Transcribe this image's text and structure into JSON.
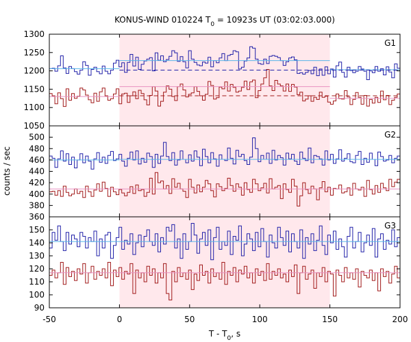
{
  "chart_data": {
    "type": "line",
    "title": "KONUS-WIND 010224 T",
    "title_sub": "0",
    "title_rest": " = 10923s UT (03:02:03.000)",
    "xlabel": "T - T",
    "xlabel_sub": "0",
    "xlabel_rest": ", s",
    "ylabel": "counts / sec",
    "xlim": [
      -50,
      200
    ],
    "x_ticks": [
      "-50",
      "0",
      "50",
      "100",
      "150",
      "200"
    ],
    "highlight_span": [
      0,
      150
    ],
    "colors": {
      "hard_curve": "#1f1fa8",
      "soft_curve": "#a01818",
      "hard_fit": "#56b4e9",
      "soft_fit": "#e890c0",
      "highlight": "#ffe8ec"
    },
    "panels": [
      {
        "label": "G1",
        "ylim": [
          1050,
          1300
        ],
        "y_ticks": [
          "1050",
          "1100",
          "1150",
          "1200",
          "1250",
          "1300"
        ],
        "series": [
          {
            "role": "upper",
            "values": [
              1206,
              1207,
              1199,
              1214,
              1241,
              1208,
              1193,
              1212,
              1206,
              1198,
              1191,
              1202,
              1225,
              1215,
              1188,
              1204,
              1210,
              1198,
              1192,
              1213,
              1199,
              1192,
              1202,
              1221,
              1229,
              1211,
              1222,
              1196,
              1223,
              1245,
              1213,
              1237,
              1204,
              1218,
              1227,
              1232,
              1236,
              1200,
              1249,
              1229,
              1241,
              1225,
              1231,
              1240,
              1255,
              1249,
              1226,
              1239,
              1225,
              1208,
              1255,
              1232,
              1223,
              1216,
              1214,
              1224,
              1221,
              1237,
              1211,
              1228,
              1222,
              1235,
              1247,
              1228,
              1242,
              1245,
              1255,
              1252,
              1205,
              1210,
              1227,
              1235,
              1266,
              1262,
              1232,
              1220,
              1218,
              1232,
              1220,
              1240,
              1242,
              1240,
              1236,
              1228,
              1215,
              1225,
              1235,
              1238,
              1230,
              1193,
              1195,
              1191,
              1196,
              1201,
              1192,
              1210,
              1187,
              1205,
              1188,
              1211,
              1192,
              1205,
              1183,
              1214,
              1224,
              1196,
              1183,
              1210,
              1201,
              1195,
              1199,
              1212,
              1205,
              1199,
              1176,
              1200,
              1195,
              1212,
              1199,
              1206,
              1189,
              1211,
              1197,
              1181,
              1219,
              1207
            ]
          },
          {
            "role": "lower",
            "values": [
              1138,
              1132,
              1110,
              1140,
              1124,
              1103,
              1151,
              1120,
              1138,
              1125,
              1131,
              1153,
              1148,
              1134,
              1121,
              1113,
              1139,
              1117,
              1143,
              1153,
              1132,
              1120,
              1124,
              1137,
              1151,
              1110,
              1137,
              1139,
              1114,
              1132,
              1143,
              1124,
              1147,
              1138,
              1121,
              1107,
              1133,
              1157,
              1145,
              1104,
              1117,
              1142,
              1159,
              1150,
              1130,
              1119,
              1157,
              1164,
              1148,
              1129,
              1136,
              1140,
              1157,
              1144,
              1132,
              1120,
              1136,
              1171,
              1160,
              1123,
              1127,
              1156,
              1151,
              1170,
              1145,
              1163,
              1155,
              1142,
              1145,
              1155,
              1172,
              1149,
              1170,
              1175,
              1127,
              1146,
              1164,
              1181,
              1204,
              1159,
              1146,
              1174,
              1164,
              1159,
              1145,
              1164,
              1144,
              1163,
              1156,
              1135,
              1142,
              1118,
              1123,
              1132,
              1117,
              1128,
              1122,
              1142,
              1128,
              1131,
              1115,
              1109,
              1118,
              1137,
              1124,
              1123,
              1146,
              1129,
              1108,
              1122,
              1141,
              1128,
              1109,
              1133,
              1104,
              1122,
              1112,
              1128,
              1114,
              1145,
              1121,
              1133,
              1108,
              1120,
              1128,
              1137
            ]
          }
        ],
        "fits": [
          {
            "role": "upper",
            "pre": 1206,
            "during": 1228,
            "post": 1203,
            "bg_dashed": 1202
          },
          {
            "role": "lower",
            "pre": 1130,
            "during": 1157,
            "post": 1125,
            "bg_dashed": 1132
          }
        ]
      },
      {
        "label": "G2",
        "ylim": [
          360,
          520
        ],
        "y_ticks": [
          "360",
          "380",
          "400",
          "420",
          "440",
          "460",
          "480",
          "500"
        ],
        "series": [
          {
            "role": "upper",
            "values": [
              467,
              463,
              447,
              462,
              476,
              458,
              471,
              452,
              465,
              446,
              460,
              471,
              455,
              467,
              458,
              444,
              462,
              473,
              456,
              465,
              454,
              468,
              475,
              459,
              462,
              470,
              458,
              449,
              463,
              474,
              460,
              476,
              453,
              463,
              456,
              472,
              466,
              447,
              470,
              454,
              467,
              491,
              466,
              459,
              473,
              451,
              460,
              476,
              461,
              455,
              469,
              458,
              476,
              465,
              450,
              479,
              466,
              455,
              473,
              462,
              449,
              469,
              461,
              459,
              481,
              463,
              453,
              477,
              466,
              470,
              459,
              452,
              465,
              499,
              480,
              457,
              468,
              461,
              472,
              454,
              477,
              460,
              468,
              464,
              451,
              472,
              462,
              470,
              458,
              452,
              474,
              463,
              459,
              481,
              455,
              468,
              466,
              462,
              451,
              476,
              460,
              470,
              454,
              462,
              478,
              458,
              463,
              471,
              457,
              455,
              468,
              475,
              452,
              463,
              456,
              472,
              461,
              450,
              474,
              466,
              458,
              460,
              468,
              455,
              463,
              467
            ]
          },
          {
            "role": "lower",
            "values": [
              404,
              405,
              398,
              406,
              396,
              414,
              403,
              397,
              400,
              409,
              401,
              405,
              394,
              414,
              404,
              396,
              407,
              418,
              405,
              421,
              410,
              396,
              412,
              404,
              399,
              408,
              402,
              397,
              403,
              413,
              401,
              416,
              406,
              408,
              396,
              403,
              428,
              400,
              438,
              420,
              423,
              409,
              415,
              401,
              427,
              412,
              419,
              409,
              405,
              394,
              426,
              412,
              402,
              416,
              404,
              412,
              424,
              418,
              406,
              395,
              418,
              413,
              406,
              410,
              428,
              415,
              405,
              418,
              412,
              398,
              420,
              408,
              403,
              426,
              418,
              406,
              411,
              419,
              402,
              427,
              409,
              412,
              415,
              392,
              418,
              408,
              403,
              426,
              414,
              379,
              397,
              420,
              408,
              401,
              414,
              409,
              390,
              411,
              422,
              404,
              412,
              398,
              410,
              409,
              416,
              402,
              404,
              411,
              398,
              419,
              409,
              407,
              412,
              396,
              424,
              408,
              400,
              415,
              403,
              419,
              411,
              406,
              426,
              413,
              421,
              426
            ]
          }
        ],
        "fits": [
          {
            "role": "upper",
            "pre": 460,
            "during": 461,
            "post": 461
          },
          {
            "role": "lower",
            "pre": 409,
            "during": 409,
            "post": 409
          }
        ]
      },
      {
        "label": "G3",
        "ylim": [
          90,
          160
        ],
        "y_ticks": [
          "90",
          "100",
          "110",
          "120",
          "130",
          "140",
          "150"
        ],
        "series": [
          {
            "role": "upper",
            "values": [
              136,
              148,
              142,
              153,
              141,
              134,
              148,
              139,
              146,
              143,
              137,
              148,
              145,
              136,
              144,
              141,
              149,
              130,
              143,
              136,
              146,
              148,
              128,
              138,
              144,
              152,
              135,
              142,
              139,
              147,
              131,
              140,
              146,
              137,
              145,
              150,
              141,
              138,
              147,
              133,
              144,
              139,
              152,
              149,
              154,
              136,
              143,
              128,
              147,
              135,
              141,
              155,
              146,
              132,
              143,
              148,
              138,
              150,
              127,
              144,
              152,
              135,
              141,
              138,
              149,
              131,
              145,
              142,
              153,
              130,
              139,
              147,
              143,
              134,
              148,
              137,
              151,
              141,
              129,
              146,
              140,
              136,
              152,
              144,
              138,
              149,
              133,
              147,
              141,
              136,
              150,
              128,
              144,
              139,
              147,
              134,
              142,
              153,
              138,
              131,
              146,
              140,
              149,
              135,
              143,
              137,
              129,
              145,
              152,
              136,
              141,
              148,
              133,
              140,
              146,
              138,
              151,
              129,
              143,
              147,
              135,
              142,
              139,
              150,
              137,
              144
            ]
          },
          {
            "role": "lower",
            "values": [
              115,
              119,
              113,
              117,
              125,
              108,
              121,
              114,
              118,
              111,
              120,
              116,
              124,
              109,
              117,
              122,
              112,
              118,
              115,
              120,
              113,
              125,
              107,
              119,
              114,
              121,
              112,
              118,
              116,
              124,
              101,
              119,
              113,
              117,
              110,
              122,
              115,
              120,
              109,
              117,
              113,
              124,
              101,
              96,
              118,
              110,
              121,
              114,
              117,
              112,
              119,
              104,
              116,
              111,
              123,
              115,
              118,
              109,
              120,
              114,
              117,
              112,
              125,
              108,
              118,
              115,
              121,
              110,
              119,
              116,
              122,
              113,
              117,
              109,
              120,
              115,
              118,
              111,
              124,
              112,
              118,
              115,
              120,
              113,
              116,
              110,
              119,
              114,
              123,
              101,
              117,
              122,
              112,
              116,
              119,
              105,
              117,
              114,
              121,
              110,
              118,
              116,
              99,
              119,
              115,
              110,
              121,
              113,
              117,
              112,
              120,
              106,
              118,
              115,
              113,
              119,
              111,
              117,
              103,
              120,
              114,
              118,
              109,
              116,
              122,
              113
            ]
          }
        ],
        "fits": [
          {
            "role": "upper",
            "pre": 141,
            "during": 141,
            "post": 141
          },
          {
            "role": "lower",
            "pre": 117,
            "during": 117,
            "post": 117
          }
        ]
      }
    ]
  }
}
